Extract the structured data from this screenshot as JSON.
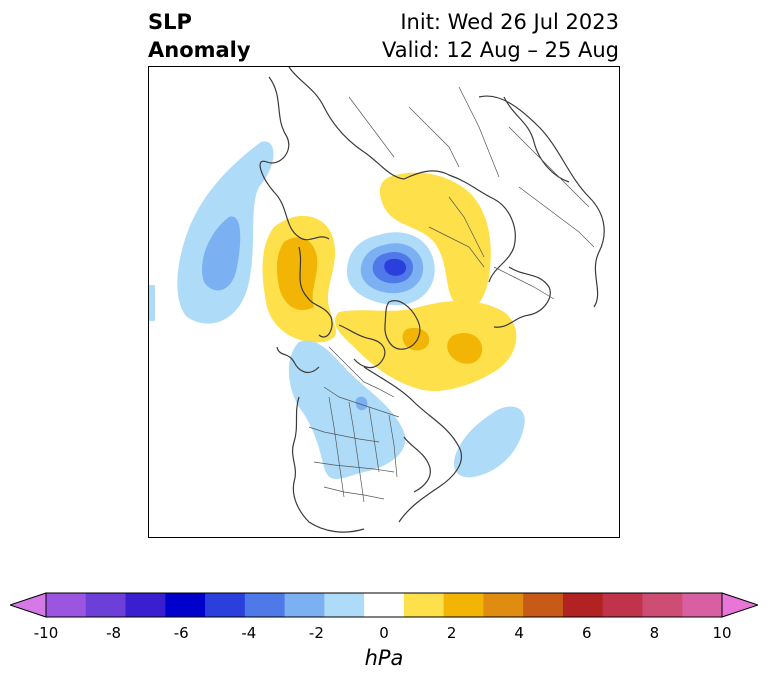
{
  "header": {
    "title_line1": "SLP",
    "title_line2": "Anomaly",
    "init_label": "Init: Wed 26 Jul 2023",
    "valid_label": "Valid: 12 Aug – 25 Aug"
  },
  "colorbar": {
    "unit": "hPa",
    "levels": [
      -10,
      -9,
      -8,
      -7,
      -6,
      -5,
      -4,
      -3,
      -2,
      -1,
      1,
      2,
      3,
      4,
      5,
      6,
      7,
      8,
      9,
      10
    ],
    "tick_labels": [
      "-10",
      "-8",
      "-6",
      "-4",
      "-2",
      "0",
      "2",
      "4",
      "6",
      "8",
      "10"
    ],
    "colors": [
      "#d679e8",
      "#9b55e0",
      "#6c3fd8",
      "#3a1fd0",
      "#0000cc",
      "#2a3fdc",
      "#4f78e8",
      "#7bb0f2",
      "#aedcf8",
      "#ffffff",
      "#fde04a",
      "#f2b505",
      "#e08c10",
      "#c85a18",
      "#b22222",
      "#c0334a",
      "#cd4d74",
      "#d95fa3",
      "#e875d8"
    ],
    "extend": "both"
  },
  "map": {
    "projection": "north polar stereographic",
    "features": [
      "coastlines",
      "country borders",
      "US state borders",
      "Canadian province borders"
    ],
    "anomaly_regions": [
      {
        "name": "North Pacific / Bering",
        "sign": "negative",
        "peak_hpa": -3
      },
      {
        "name": "Arctic Ocean (near pole)",
        "sign": "negative",
        "peak_hpa": -6
      },
      {
        "name": "Siberia / East Asia",
        "sign": "positive",
        "peak_hpa": 2
      },
      {
        "name": "Scandinavia / Western Russia",
        "sign": "positive",
        "peak_hpa": 1
      },
      {
        "name": "Greenland / North Atlantic",
        "sign": "positive",
        "peak_hpa": 3
      },
      {
        "name": "Central North America",
        "sign": "negative",
        "peak_hpa": -2
      },
      {
        "name": "Western North Atlantic",
        "sign": "negative",
        "peak_hpa": -1
      }
    ]
  }
}
